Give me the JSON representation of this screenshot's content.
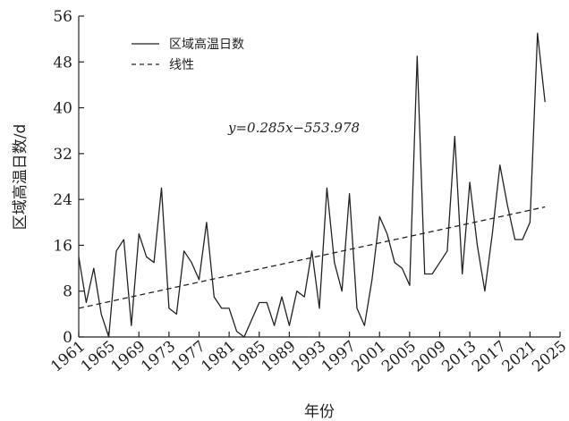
{
  "chart_data": {
    "type": "line",
    "xlabel": "年份",
    "ylabel": "区域高温日数/d",
    "xlim": [
      1961,
      2025
    ],
    "ylim": [
      0,
      56
    ],
    "x_ticks": [
      1961,
      1965,
      1969,
      1973,
      1977,
      1981,
      1985,
      1989,
      1993,
      1997,
      2001,
      2005,
      2009,
      2013,
      2017,
      2021,
      2025
    ],
    "y_ticks": [
      0,
      8,
      16,
      24,
      32,
      40,
      48,
      56
    ],
    "annotation": "y=0.285x−553.978",
    "legend_position": "top-left",
    "series": [
      {
        "name": "区域高温日数",
        "style": "solid",
        "x": [
          1961,
          1962,
          1963,
          1964,
          1965,
          1966,
          1967,
          1968,
          1969,
          1970,
          1971,
          1972,
          1973,
          1974,
          1975,
          1976,
          1977,
          1978,
          1979,
          1980,
          1981,
          1982,
          1983,
          1984,
          1985,
          1986,
          1987,
          1988,
          1989,
          1990,
          1991,
          1992,
          1993,
          1994,
          1995,
          1996,
          1997,
          1998,
          1999,
          2000,
          2001,
          2002,
          2003,
          2004,
          2005,
          2006,
          2007,
          2008,
          2009,
          2010,
          2011,
          2012,
          2013,
          2014,
          2015,
          2016,
          2017,
          2018,
          2019,
          2020,
          2021,
          2022,
          2023
        ],
        "values": [
          14,
          6,
          12,
          4,
          0,
          15,
          17,
          2,
          18,
          14,
          13,
          26,
          5,
          4,
          15,
          13,
          10,
          20,
          7,
          5,
          5,
          1,
          0,
          3,
          6,
          6,
          2,
          7,
          2,
          8,
          7,
          15,
          5,
          26,
          13,
          8,
          25,
          5,
          2,
          10,
          21,
          18,
          13,
          12,
          9,
          49,
          11,
          11,
          13,
          15,
          35,
          11,
          27,
          16,
          8,
          18,
          30,
          23,
          17,
          17,
          20,
          53,
          41
        ]
      },
      {
        "name": "线性",
        "style": "dashed",
        "x": [
          1961,
          2023
        ],
        "values": [
          5.0,
          22.7
        ]
      }
    ]
  }
}
